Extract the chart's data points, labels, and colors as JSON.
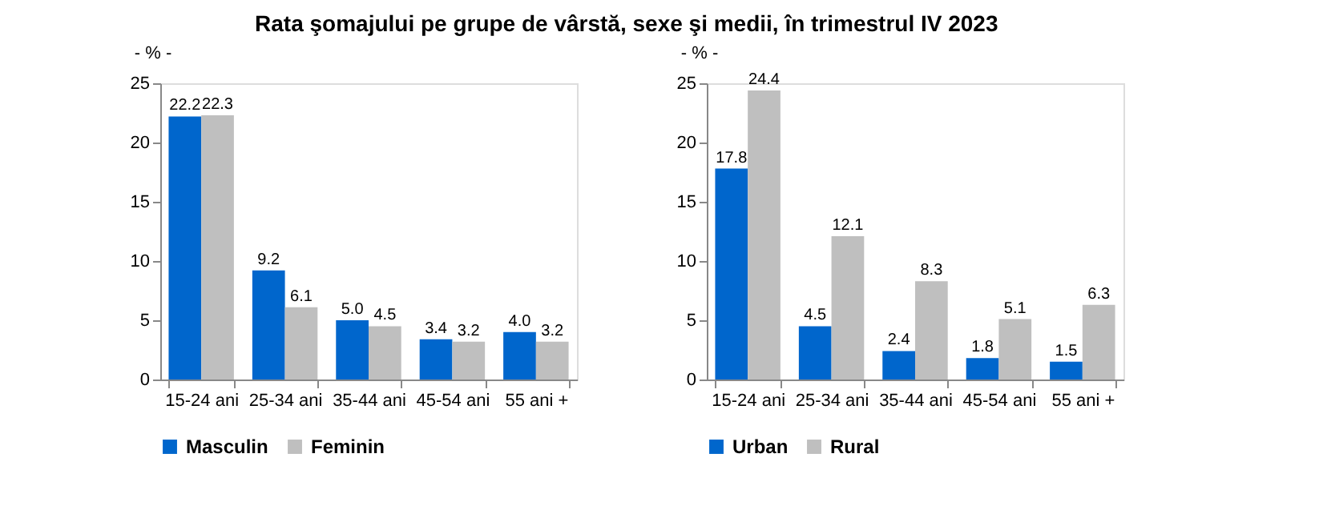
{
  "chart_data": [
    {
      "type": "bar",
      "title": "Rata şomajului pe grupe de vârstă, sexe şi medii, în trimestrul IV 2023",
      "ylabel": "- % -",
      "categories": [
        "15-24 ani",
        "25-34 ani",
        "35-44 ani",
        "45-54 ani",
        "55 ani +"
      ],
      "series": [
        {
          "name": "Masculin",
          "color": "#0066cc",
          "values": [
            22.2,
            9.2,
            5.0,
            3.4,
            4.0
          ],
          "value_labels": [
            "22.2",
            "9.2",
            "5.0",
            "3.4",
            "4.0"
          ]
        },
        {
          "name": "Feminin",
          "color": "#bfbfbf",
          "values": [
            22.3,
            6.1,
            4.5,
            3.2,
            3.2
          ],
          "value_labels": [
            "22.3",
            "6.1",
            "4.5",
            "3.2",
            "3.2"
          ]
        }
      ],
      "ylim": [
        0,
        25
      ],
      "yticks": [
        0,
        5,
        10,
        15,
        20,
        25
      ],
      "grid": false,
      "legend": "bottom"
    },
    {
      "type": "bar",
      "ylabel": "- % -",
      "categories": [
        "15-24 ani",
        "25-34 ani",
        "35-44 ani",
        "45-54 ani",
        "55 ani +"
      ],
      "series": [
        {
          "name": "Urban",
          "color": "#0066cc",
          "values": [
            17.8,
            4.5,
            2.4,
            1.8,
            1.5
          ]
        },
        {
          "name": "Rural",
          "color": "#bfbfbf",
          "values": [
            24.4,
            12.1,
            8.3,
            5.1,
            6.3
          ]
        }
      ],
      "ylim": [
        0,
        25
      ],
      "yticks": [
        0,
        5,
        10,
        15,
        20,
        25
      ],
      "grid": false,
      "legend": "bottom",
      "data_labels": true
    }
  ]
}
